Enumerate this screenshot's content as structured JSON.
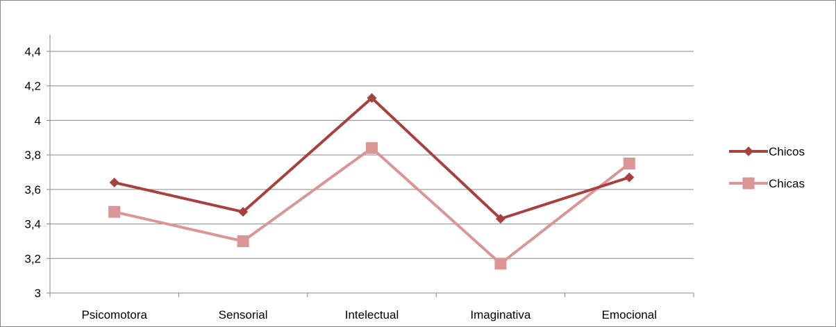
{
  "chart_data": {
    "type": "line",
    "title": "",
    "xlabel": "",
    "ylabel": "",
    "categories": [
      "Psicomotora",
      "Sensorial",
      "Intelectual",
      "Imaginativa",
      "Emocional"
    ],
    "ylim": [
      3,
      4.4
    ],
    "yticks": [
      3,
      3.2,
      3.4,
      3.6,
      3.8,
      4,
      4.2,
      4.4
    ],
    "ytick_labels": [
      "3",
      "3,2",
      "3,4",
      "3,6",
      "3,8",
      "4",
      "4,2",
      "4,4"
    ],
    "grid": "horizontal",
    "legend_position": "right",
    "series": [
      {
        "name": "Chicos",
        "values": [
          3.64,
          3.47,
          4.13,
          3.43,
          3.67
        ],
        "color": "#a7413f",
        "marker": "diamond"
      },
      {
        "name": "Chicas",
        "values": [
          3.47,
          3.3,
          3.84,
          3.17,
          3.75
        ],
        "color": "#d99694",
        "marker": "square"
      }
    ]
  }
}
